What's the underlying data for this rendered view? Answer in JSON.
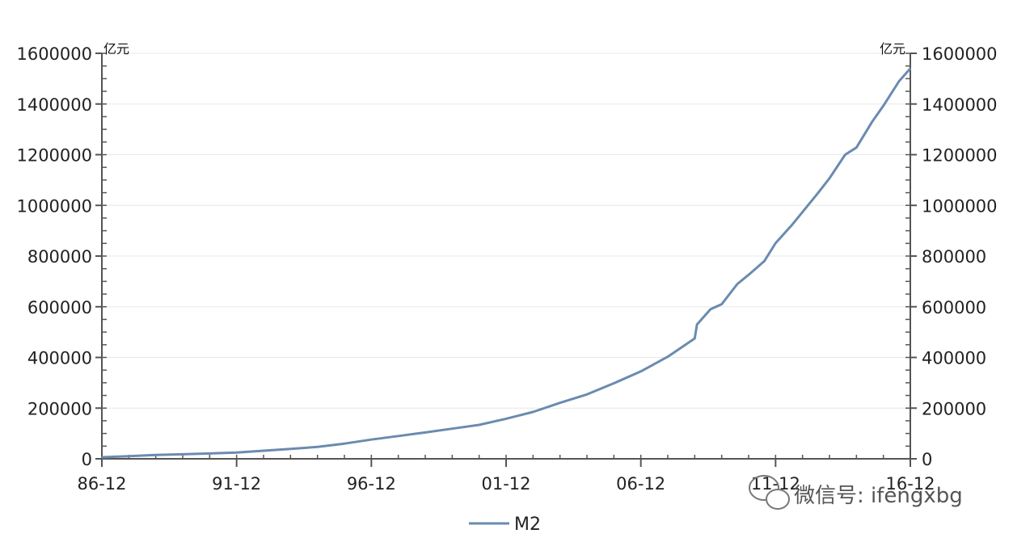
{
  "watermark": {
    "text": "微信号: ifengxbg",
    "icon": "wechat-icon"
  },
  "chart_data": {
    "type": "line",
    "title": "",
    "xlabel": "",
    "ylabel": "",
    "unit_left": "亿元",
    "unit_right": "亿元",
    "ylim": [
      0,
      1600000
    ],
    "yticks": [
      0,
      200000,
      400000,
      600000,
      800000,
      1000000,
      1200000,
      1400000,
      1600000
    ],
    "ytick_labels": [
      "0",
      "200000",
      "400000",
      "600000",
      "800000",
      "1000000",
      "1200000",
      "1400000",
      "1600000"
    ],
    "xlim": [
      1986.917,
      2016.917
    ],
    "xticks": [
      1986.917,
      1991.917,
      1996.917,
      2001.917,
      2006.917,
      2011.917,
      2016.917
    ],
    "xtick_labels": [
      "86-12",
      "91-12",
      "96-12",
      "01-12",
      "06-12",
      "11-12",
      "16-12"
    ],
    "grid": true,
    "legend": "bottom-center",
    "colors": {
      "series": "#6a8bb0",
      "axis": "#555555",
      "grid": "#e8e8e8"
    },
    "series": [
      {
        "name": "M2",
        "x": [
          1986.917,
          1987.917,
          1988.917,
          1989.917,
          1990.917,
          1991.917,
          1992.917,
          1993.917,
          1994.917,
          1995.917,
          1996.917,
          1997.917,
          1998.917,
          1999.917,
          2000.917,
          2001.917,
          2002.917,
          2003.917,
          2004.917,
          2005.917,
          2006.917,
          2007.917,
          2008.917,
          2009.0,
          2009.5,
          2009.917,
          2010.5,
          2010.917,
          2011.5,
          2011.917,
          2012.5,
          2012.917,
          2013.5,
          2013.917,
          2014.5,
          2014.917,
          2015.5,
          2015.917,
          2016.5,
          2016.917
        ],
        "values": [
          6400,
          10100,
          15000,
          18000,
          21000,
          25000,
          32000,
          39000,
          47000,
          60000,
          76000,
          90000,
          104000,
          119000,
          134000,
          158000,
          185000,
          221000,
          254000,
          298000,
          345000,
          403000,
          475000,
          530000,
          590000,
          610000,
          690000,
          726000,
          780000,
          851000,
          920000,
          974000,
          1050000,
          1107000,
          1200000,
          1228000,
          1330000,
          1393000,
          1490000,
          1540000
        ]
      }
    ]
  }
}
